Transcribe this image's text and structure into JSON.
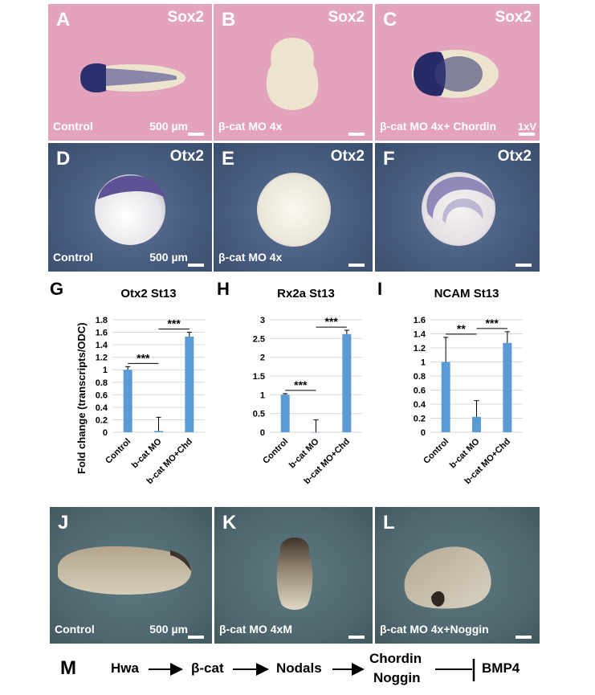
{
  "row1": [
    {
      "letter": "A",
      "gene": "Sox2",
      "condition": "Control",
      "scale": "500 µm"
    },
    {
      "letter": "B",
      "gene": "Sox2",
      "condition": "β-cat MO 4x"
    },
    {
      "letter": "C",
      "gene": "Sox2",
      "condition": "β-cat MO 4x+ Chordin",
      "extra": "1xV"
    }
  ],
  "row2": [
    {
      "letter": "D",
      "gene": "Otx2",
      "condition": "Control",
      "scale": "500 µm"
    },
    {
      "letter": "E",
      "gene": "Otx2",
      "condition": "β-cat MO 4x"
    },
    {
      "letter": "F",
      "gene": "Otx2"
    }
  ],
  "charts": {
    "ylabel": "Fold change (transcripts/ODC)",
    "letters": [
      "G",
      "H",
      "I"
    ]
  },
  "chart_data": [
    {
      "type": "bar",
      "title": "Otx2 St13",
      "categories": [
        "Control",
        "b-cat MO",
        "b-cat MO+Chd"
      ],
      "values": [
        1.0,
        0.02,
        1.53
      ],
      "errors": [
        0.05,
        0.22,
        0.07
      ],
      "ylim": [
        0,
        1.8
      ],
      "ticks": [
        "0",
        "0.2",
        "0.4",
        "0.6",
        "0.8",
        "1",
        "1.2",
        "1.4",
        "1.6",
        "1.8"
      ],
      "significance": [
        {
          "from": 0,
          "to": 1,
          "label": "***"
        },
        {
          "from": 1,
          "to": 2,
          "label": "***"
        }
      ]
    },
    {
      "type": "bar",
      "title": "Rx2a St13",
      "categories": [
        "Control",
        "b-cat MO",
        "b-cat MO+Chd"
      ],
      "values": [
        1.0,
        0.0,
        2.62
      ],
      "errors": [
        0.03,
        0.33,
        0.1
      ],
      "ylim": [
        0,
        3
      ],
      "ticks": [
        "0",
        "0.5",
        "1",
        "1.5",
        "2",
        "2.5",
        "3"
      ],
      "significance": [
        {
          "from": 0,
          "to": 1,
          "label": "***"
        },
        {
          "from": 1,
          "to": 2,
          "label": "***"
        }
      ]
    },
    {
      "type": "bar",
      "title": "NCAM St13",
      "categories": [
        "Control",
        "b-cat MO",
        "b-cat MO+Chd"
      ],
      "values": [
        1.0,
        0.22,
        1.27
      ],
      "errors": [
        0.35,
        0.23,
        0.16
      ],
      "ylim": [
        0,
        1.6
      ],
      "ticks": [
        "0",
        "0.2",
        "0.4",
        "0.6",
        "0.8",
        "1",
        "1.2",
        "1.4",
        "1.6"
      ],
      "significance": [
        {
          "from": 0,
          "to": 1,
          "label": "**"
        },
        {
          "from": 1,
          "to": 2,
          "label": "***"
        }
      ]
    }
  ],
  "row4": [
    {
      "letter": "J",
      "condition": "Control",
      "scale": "500 µm"
    },
    {
      "letter": "K",
      "condition": "β-cat MO 4xM"
    },
    {
      "letter": "L",
      "condition": "β-cat MO 4x+Noggin"
    }
  ],
  "pathway": {
    "letter": "M",
    "nodes": [
      "Hwa",
      "β-cat",
      "Nodals",
      "Chordin",
      "Noggin",
      "BMP4"
    ]
  }
}
